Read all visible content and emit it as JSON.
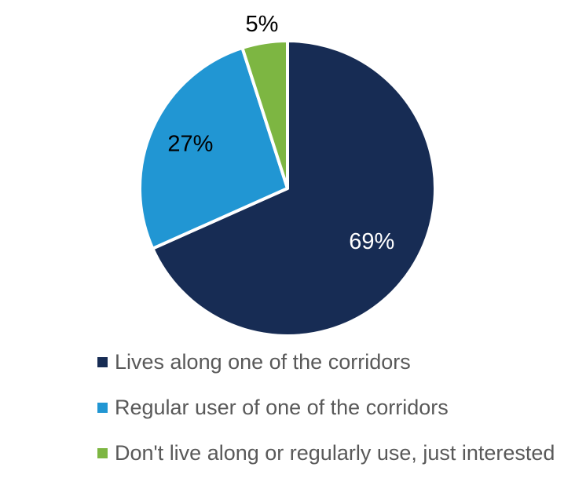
{
  "chart_data": {
    "type": "pie",
    "title": "",
    "legend": "bottom",
    "slices": [
      {
        "label": "Lives along one of the corridors",
        "value": 69,
        "display": "69%",
        "color": "#172c54",
        "label_color": "#ffffff"
      },
      {
        "label": "Regular user of one of the corridors",
        "value": 27,
        "display": "27%",
        "color": "#2196d3",
        "label_color": "#000000"
      },
      {
        "label": "Don't live along or regularly use, just interested",
        "value": 5,
        "display": "5%",
        "color": "#7db642",
        "label_color": "#000000"
      }
    ]
  }
}
